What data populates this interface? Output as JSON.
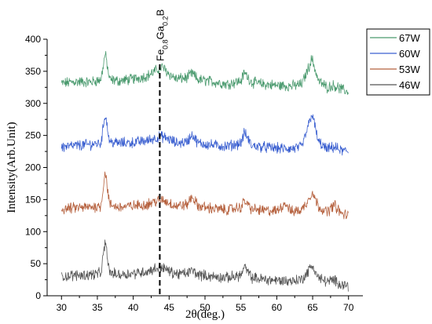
{
  "chart_data": {
    "type": "line",
    "xlabel": "2θ(deg.)",
    "ylabel": "Intensity(Arb.Unit)",
    "xlim": [
      28,
      72
    ],
    "ylim": [
      0,
      400
    ],
    "xticks": [
      30,
      35,
      40,
      45,
      50,
      55,
      60,
      65,
      70
    ],
    "yticks": [
      0,
      50,
      100,
      150,
      200,
      250,
      300,
      350,
      400
    ],
    "legend_position": "top-right",
    "annotation": {
      "label_main": "Fe",
      "sub1": "0.8",
      "mid": "Ga",
      "sub2": "0.2",
      "end": "B",
      "x": 43.7,
      "style": "dashed vertical line"
    },
    "series": [
      {
        "name": "67W",
        "color": "#4a9a6e",
        "x": [
          30,
          32,
          34,
          35.5,
          36.1,
          36.7,
          38,
          40,
          42,
          43,
          44,
          45,
          46,
          47.5,
          48.2,
          49,
          51,
          53,
          55,
          55.5,
          56.5,
          58,
          60,
          62,
          63.5,
          64.4,
          64.9,
          65.8,
          67,
          68,
          69,
          70
        ],
        "values": [
          331,
          334,
          333,
          337,
          378,
          337,
          335,
          338,
          343,
          350,
          357,
          346,
          338,
          340,
          347,
          337,
          334,
          330,
          335,
          348,
          333,
          330,
          328,
          327,
          330,
          355,
          370,
          335,
          325,
          328,
          322,
          318
        ]
      },
      {
        "name": "60W",
        "color": "#3a5fd0",
        "x": [
          30,
          32,
          34,
          35.5,
          36.1,
          36.7,
          38,
          40,
          42,
          43,
          44,
          45,
          46,
          47.5,
          48.2,
          49,
          51,
          53,
          55,
          55.5,
          56.5,
          58,
          60,
          62,
          63.5,
          64.4,
          64.9,
          65.8,
          67,
          68,
          69,
          70
        ],
        "values": [
          232,
          234,
          236,
          238,
          285,
          240,
          238,
          239,
          242,
          246,
          248,
          244,
          238,
          240,
          252,
          238,
          235,
          233,
          238,
          255,
          234,
          232,
          230,
          229,
          232,
          265,
          285,
          240,
          228,
          232,
          226,
          225
        ]
      },
      {
        "name": "53W",
        "color": "#b5603d",
        "x": [
          30,
          32,
          34,
          35.5,
          36.1,
          36.7,
          38,
          40,
          42,
          43,
          44,
          45,
          46,
          47.5,
          48.2,
          49,
          51,
          53,
          55,
          55.5,
          56.5,
          58,
          60,
          61.2,
          62,
          63.5,
          64.4,
          64.9,
          65.8,
          67,
          68,
          69,
          70
        ],
        "values": [
          135,
          137,
          138,
          140,
          195,
          142,
          138,
          140,
          143,
          147,
          150,
          145,
          140,
          142,
          155,
          140,
          136,
          134,
          138,
          148,
          135,
          133,
          132,
          145,
          131,
          134,
          150,
          162,
          140,
          130,
          142,
          128,
          125
        ]
      },
      {
        "name": "46W",
        "color": "#555555",
        "x": [
          30,
          32,
          34,
          35.5,
          36.1,
          36.7,
          38,
          40,
          42,
          43,
          44,
          45,
          46,
          47.5,
          48.2,
          49,
          51,
          53,
          55,
          55.5,
          56.5,
          58,
          60,
          62,
          63.5,
          64.4,
          64.9,
          65.8,
          67,
          68,
          69,
          70
        ],
        "values": [
          30,
          32,
          33,
          35,
          85,
          36,
          33,
          35,
          38,
          42,
          45,
          38,
          34,
          35,
          40,
          33,
          30,
          28,
          32,
          45,
          28,
          26,
          24,
          23,
          26,
          38,
          48,
          28,
          22,
          24,
          18,
          16
        ]
      }
    ]
  }
}
